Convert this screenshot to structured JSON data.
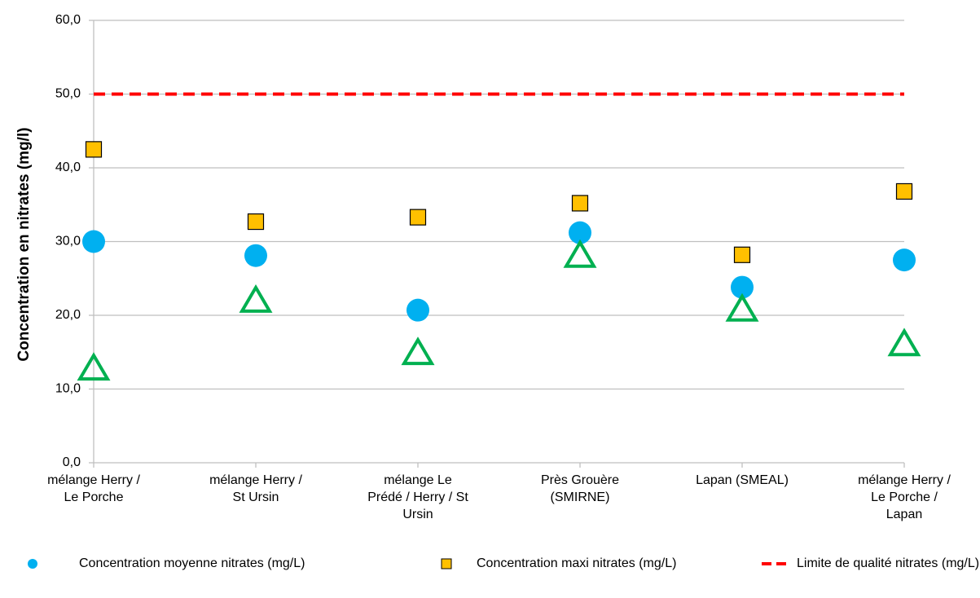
{
  "chart_data": {
    "type": "scatter",
    "y_label": "Concentration en nitrates (mg/l)",
    "categories": [
      "mélange Herry / Le Porche",
      "mélange Herry / St Ursin",
      "mélange Le Prédé / Herry / St Ursin",
      "Près Grouère (SMIRNE)",
      "Lapan (SMEAL)",
      "mélange Herry / Le Porche / Lapan"
    ],
    "series": [
      {
        "name": "Concentration moyenne nitrates (mg/L)",
        "color": "#00b0f0",
        "marker": "circle",
        "values": [
          30.0,
          28.1,
          20.7,
          31.2,
          23.8,
          27.5
        ]
      },
      {
        "name": "Concentration maxi nitrates (mg/L)",
        "color": "#ffc000",
        "marker": "square",
        "values": [
          42.5,
          32.7,
          33.3,
          35.2,
          28.2,
          36.8
        ]
      },
      {
        "name": "Limite de qualité nitrates (mg/L)",
        "color": "#ff0000",
        "marker": "dashed-line",
        "values": [
          50,
          50,
          50,
          50,
          50,
          50
        ]
      },
      {
        "color": "#00b050",
        "marker": "triangle",
        "values": [
          12.8,
          22.0,
          14.9,
          28.1,
          20.8,
          16.1
        ]
      }
    ],
    "ylim": [
      0,
      60
    ],
    "yticks": [
      {
        "value": 0,
        "label": "0,0"
      },
      {
        "value": 10,
        "label": "10,0"
      },
      {
        "value": 20,
        "label": "20,0"
      },
      {
        "value": 30,
        "label": "30,0"
      },
      {
        "value": 40,
        "label": "40,0"
      },
      {
        "value": 50,
        "label": "50,0"
      },
      {
        "value": 60,
        "label": "60,0"
      }
    ],
    "grid": true,
    "legend": "bottom"
  }
}
